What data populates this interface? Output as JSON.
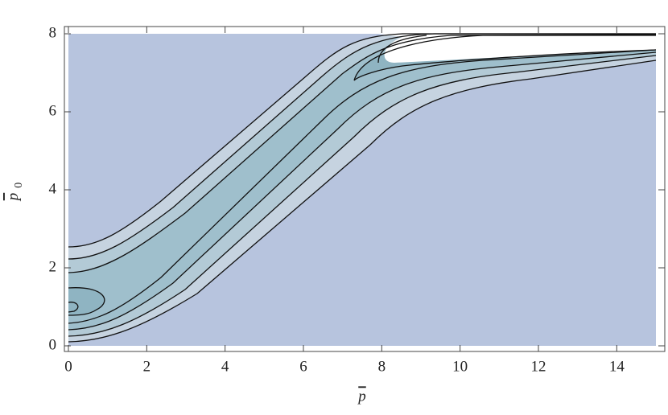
{
  "chart_data": {
    "type": "contour",
    "x_label": "p",
    "y_label": {
      "symbol": "p",
      "subscript": "0"
    },
    "xlim": [
      0,
      15
    ],
    "ylim": [
      0,
      8
    ],
    "xticks": [
      0,
      2,
      4,
      6,
      8,
      10,
      12,
      14
    ],
    "yticks": [
      0,
      2,
      4,
      6,
      8
    ],
    "grid": false,
    "background_color": "#b7c4de"
  }
}
